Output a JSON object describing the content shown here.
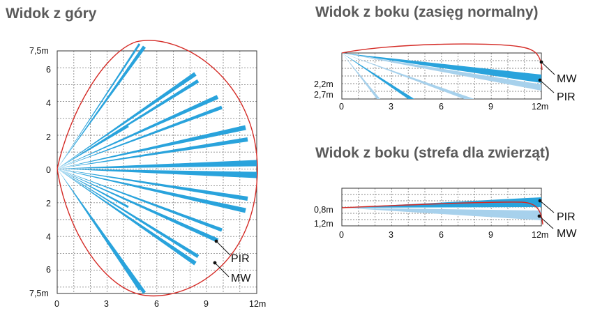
{
  "colors": {
    "pir": "#29a3dc",
    "pir_light": "#a7d1ec",
    "mw": "#d42a25",
    "grid": "#8a8a8a"
  },
  "top_view": {
    "title": "Widok z góry",
    "x_ticks": [
      "0",
      "3",
      "6",
      "9",
      "12m"
    ],
    "y_ticks": [
      "7,5m",
      "6",
      "4",
      "2",
      "0",
      "2",
      "4",
      "6",
      "7,5m"
    ],
    "labels": {
      "pir": "PIR",
      "mw": "MW"
    }
  },
  "side_normal": {
    "title": "Widok z boku (zasięg normalny)",
    "x_ticks": [
      "0",
      "3",
      "6",
      "9",
      "12m"
    ],
    "y_ticks": [
      "2,2m",
      "2,7m"
    ],
    "labels": {
      "mw": "MW",
      "pir": "PIR"
    }
  },
  "side_pet": {
    "title": "Widok z boku (strefa dla zwierząt)",
    "x_ticks": [
      "0",
      "3",
      "6",
      "9",
      "12m"
    ],
    "y_ticks": [
      "0,8m",
      "1,2m"
    ],
    "labels": {
      "pir": "PIR",
      "mw": "MW"
    }
  }
}
